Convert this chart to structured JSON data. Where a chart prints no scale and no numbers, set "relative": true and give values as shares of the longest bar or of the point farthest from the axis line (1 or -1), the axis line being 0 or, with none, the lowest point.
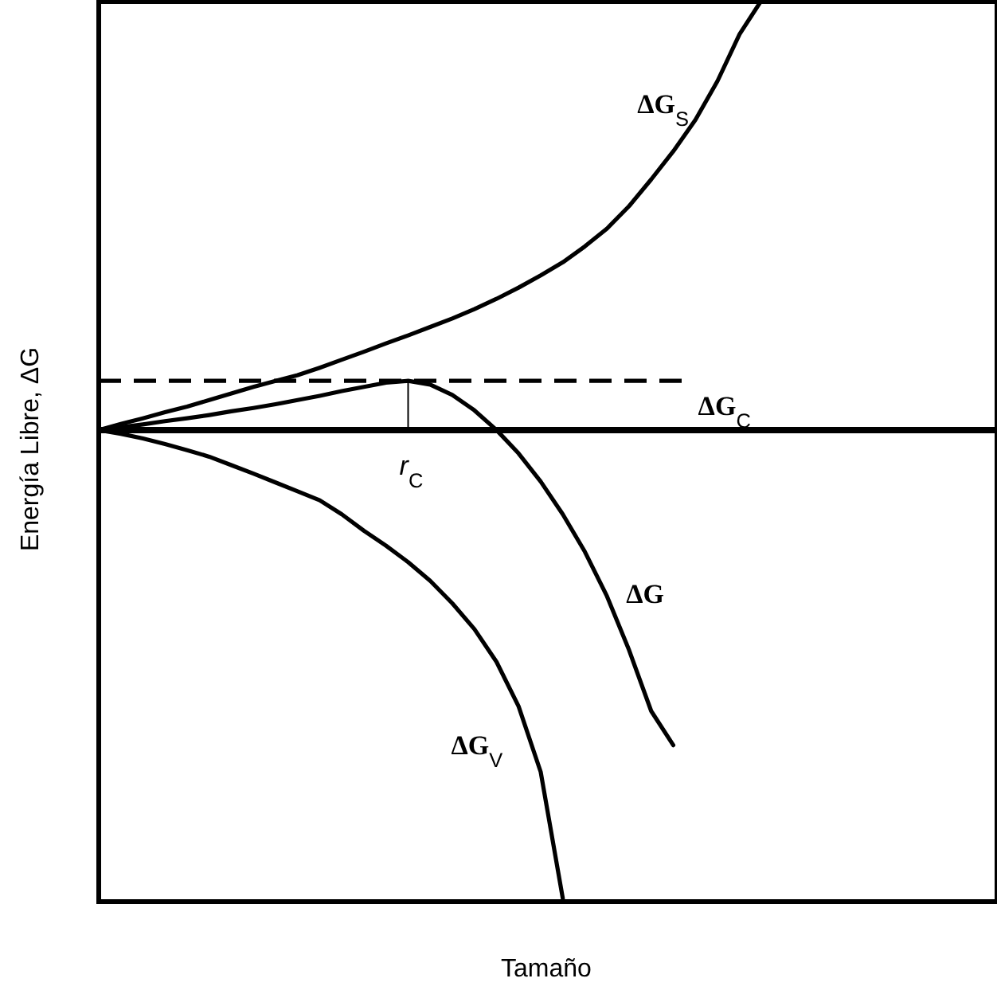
{
  "chart_data": {
    "type": "line",
    "relative": true,
    "xlabel": "Tamaño",
    "ylabel": "Energía Libre, ΔG",
    "tick_labels": false,
    "grid": false,
    "legend": false,
    "marker": "none",
    "line_style": "solid",
    "categories": [
      null,
      null,
      null,
      null,
      null,
      null,
      null,
      null,
      null,
      null,
      null,
      null,
      null,
      null,
      null,
      null,
      null,
      null,
      null,
      null,
      null,
      null,
      null,
      null,
      null,
      null,
      null,
      null,
      null,
      null,
      null,
      null,
      null,
      null,
      null,
      null,
      null,
      null,
      null,
      null,
      null
    ],
    "series": [
      {
        "name": "ΔG$_{S}$",
        "color": "#000000",
        "values": [
          0,
          0.013,
          0.025,
          0.038,
          0.05,
          0.064,
          0.078,
          0.092,
          0.105,
          0.117,
          0.133,
          0.15,
          0.167,
          0.185,
          0.202,
          0.22,
          0.238,
          0.258,
          0.28,
          0.304,
          0.33,
          0.358,
          0.392,
          0.43,
          0.478,
          0.535,
          0.595,
          0.662,
          0.745,
          0.845,
          0.918,
          null,
          null,
          null,
          null,
          null,
          null,
          null,
          null,
          null,
          null
        ]
      },
      {
        "name": "ΔG",
        "color": "#000000",
        "values": [
          0,
          0.006,
          0.012,
          0.019,
          0.025,
          0.032,
          0.04,
          0.047,
          0.055,
          0.064,
          0.073,
          0.083,
          0.092,
          0.101,
          0.105,
          0.097,
          0.075,
          0.042,
          0,
          -0.05,
          -0.11,
          -0.18,
          -0.26,
          -0.355,
          -0.47,
          -0.6,
          -0.673,
          null,
          null,
          null,
          null,
          null,
          null,
          null,
          null,
          null,
          null,
          null,
          null,
          null,
          null
        ]
      },
      {
        "name": "ΔG$_{V}$",
        "color": "#000000",
        "values": [
          0,
          -0.008,
          -0.018,
          -0.03,
          -0.043,
          -0.057,
          -0.075,
          -0.093,
          -0.112,
          -0.131,
          -0.15,
          -0.18,
          -0.215,
          -0.247,
          -0.282,
          -0.322,
          -0.37,
          -0.425,
          -0.495,
          -0.59,
          -0.73,
          -1,
          null,
          null,
          null,
          null,
          null,
          null,
          null,
          null,
          null,
          null,
          null,
          null,
          null,
          null,
          null,
          null,
          null,
          null,
          null
        ]
      }
    ],
    "ref_lines": [
      {
        "axis": "y",
        "value": 0.105,
        "label": "ΔG$_{C}$",
        "line_style": "dashed",
        "color": "#000000"
      }
    ],
    "annotations": [
      {
        "text": "r$_{C}$",
        "y": 0.105
      }
    ]
  }
}
